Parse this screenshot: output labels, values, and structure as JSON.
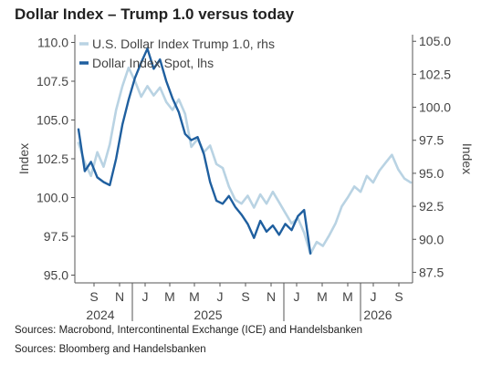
{
  "title": "Dollar Index – Trump 1.0 versus today",
  "sources": [
    "Sources: Macrobond, Intercontinental Exchange (ICE) and Handelsbanken",
    "Sources: Bloomberg and Handelsbanken"
  ],
  "chart_data": {
    "type": "line",
    "title": "Dollar Index – Trump 1.0 versus today",
    "ylabel_left": "Index",
    "ylabel_right": "Index",
    "ylim_left": [
      94.5,
      110.5
    ],
    "ylim_right": [
      86.7,
      105.5
    ],
    "yticks_left": [
      "110.0",
      "107.5",
      "105.0",
      "102.5",
      "100.0",
      "97.5",
      "95.0"
    ],
    "yticks_right": [
      "105.0",
      "102.5",
      "100.0",
      "97.5",
      "95.0",
      "92.5",
      "90.0",
      "87.5"
    ],
    "xticks": [
      "S",
      "N",
      "J",
      "M",
      "M",
      "J",
      "S",
      "N",
      "J",
      "M",
      "M",
      "J",
      "S"
    ],
    "year_labels": [
      "2024",
      "2025",
      "2026"
    ],
    "legend_position": "top-left",
    "grid": false,
    "series": [
      {
        "name": "U.S. Dollar Index Trump 1.0, rhs",
        "axis": "right",
        "color": "#b9d3e3",
        "points": [
          [
            0,
            97.3
          ],
          [
            1,
            95.8
          ],
          [
            2,
            94.8
          ],
          [
            3,
            96.6
          ],
          [
            4,
            95.5
          ],
          [
            5,
            97.2
          ],
          [
            6,
            99.8
          ],
          [
            7,
            101.6
          ],
          [
            8,
            103.0
          ],
          [
            9,
            102.0
          ],
          [
            10,
            100.8
          ],
          [
            11,
            101.6
          ],
          [
            12,
            100.9
          ],
          [
            13,
            101.5
          ],
          [
            14,
            100.4
          ],
          [
            15,
            99.8
          ],
          [
            16,
            100.6
          ],
          [
            17,
            99.5
          ],
          [
            18,
            97.0
          ],
          [
            19,
            97.6
          ],
          [
            20,
            96.6
          ],
          [
            21,
            97.1
          ],
          [
            22,
            95.7
          ],
          [
            23,
            95.4
          ],
          [
            24,
            94.0
          ],
          [
            25,
            93.0
          ],
          [
            26,
            92.7
          ],
          [
            27,
            93.3
          ],
          [
            28,
            92.4
          ],
          [
            29,
            93.4
          ],
          [
            30,
            92.7
          ],
          [
            31,
            93.6
          ],
          [
            32,
            92.8
          ],
          [
            33,
            92.0
          ],
          [
            34,
            91.2
          ],
          [
            35,
            91.6
          ],
          [
            36,
            90.5
          ],
          [
            37,
            88.9
          ],
          [
            38,
            89.8
          ],
          [
            39,
            89.5
          ],
          [
            40,
            90.3
          ],
          [
            41,
            91.2
          ],
          [
            42,
            92.5
          ],
          [
            43,
            93.2
          ],
          [
            44,
            94.0
          ],
          [
            45,
            93.6
          ],
          [
            46,
            94.8
          ],
          [
            47,
            94.3
          ],
          [
            48,
            95.2
          ],
          [
            49,
            95.8
          ],
          [
            50,
            96.4
          ],
          [
            51,
            95.3
          ],
          [
            52,
            94.6
          ],
          [
            53,
            94.3
          ]
        ]
      },
      {
        "name": "Dollar Index Spot, lhs",
        "axis": "left",
        "color": "#1f5f9f",
        "points": [
          [
            0,
            104.4
          ],
          [
            1,
            101.7
          ],
          [
            2,
            102.3
          ],
          [
            3,
            101.3
          ],
          [
            4,
            101.0
          ],
          [
            5,
            100.8
          ],
          [
            6,
            102.5
          ],
          [
            7,
            104.7
          ],
          [
            8,
            106.3
          ],
          [
            9,
            107.7
          ],
          [
            10,
            108.7
          ],
          [
            11,
            109.6
          ],
          [
            12,
            108.3
          ],
          [
            13,
            108.9
          ],
          [
            14,
            107.5
          ],
          [
            15,
            106.4
          ],
          [
            16,
            105.5
          ],
          [
            17,
            104.1
          ],
          [
            18,
            103.7
          ],
          [
            19,
            103.9
          ],
          [
            20,
            102.8
          ],
          [
            21,
            101.0
          ],
          [
            22,
            99.8
          ],
          [
            23,
            99.6
          ],
          [
            24,
            100.1
          ],
          [
            25,
            99.4
          ],
          [
            26,
            98.9
          ],
          [
            27,
            98.3
          ],
          [
            28,
            97.4
          ],
          [
            29,
            98.5
          ],
          [
            30,
            97.8
          ],
          [
            31,
            98.2
          ],
          [
            32,
            97.6
          ],
          [
            33,
            98.3
          ],
          [
            34,
            97.9
          ],
          [
            35,
            98.8
          ],
          [
            36,
            99.2
          ],
          [
            37,
            96.4
          ]
        ]
      }
    ]
  }
}
